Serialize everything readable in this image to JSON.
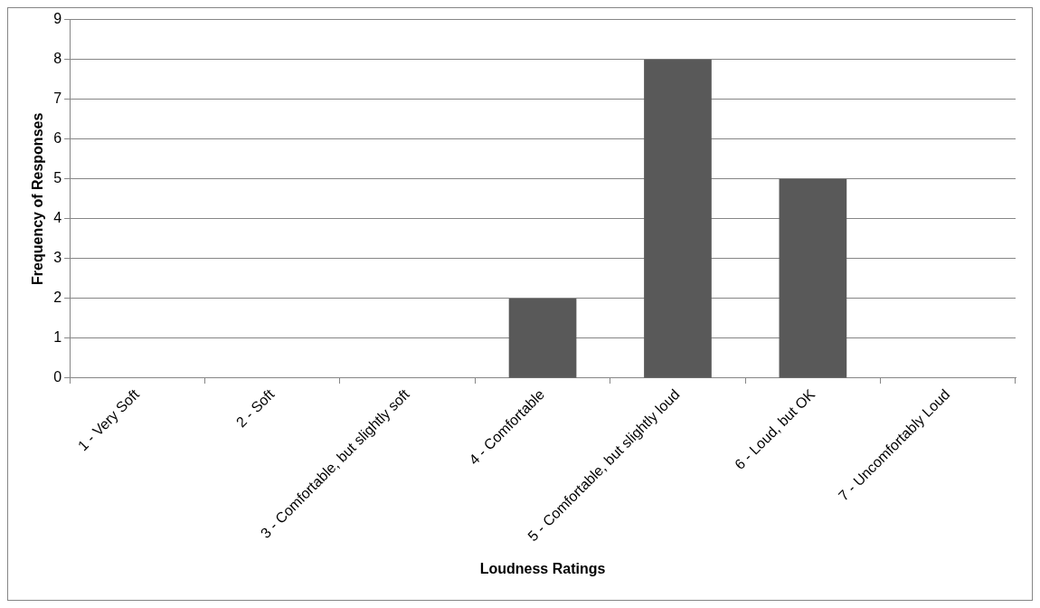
{
  "chart_data": {
    "type": "bar",
    "xlabel": "Loudness Ratings",
    "ylabel": "Frequency of Responses",
    "categories": [
      "1 - Very Soft",
      "2 - Soft",
      "3 - Comfortable, but slightly soft",
      "4 - Comfortable",
      "5 - Comfortable, but slightly loud",
      "6 - Loud, but OK",
      "7 - Uncomfortably Loud"
    ],
    "values": [
      0,
      0,
      0,
      2,
      8,
      5,
      0
    ],
    "color": "#595959",
    "ylim": [
      0,
      9
    ],
    "yticks": [
      0,
      1,
      2,
      3,
      4,
      5,
      6,
      7,
      8,
      9
    ],
    "grid": "y",
    "legend": false
  }
}
